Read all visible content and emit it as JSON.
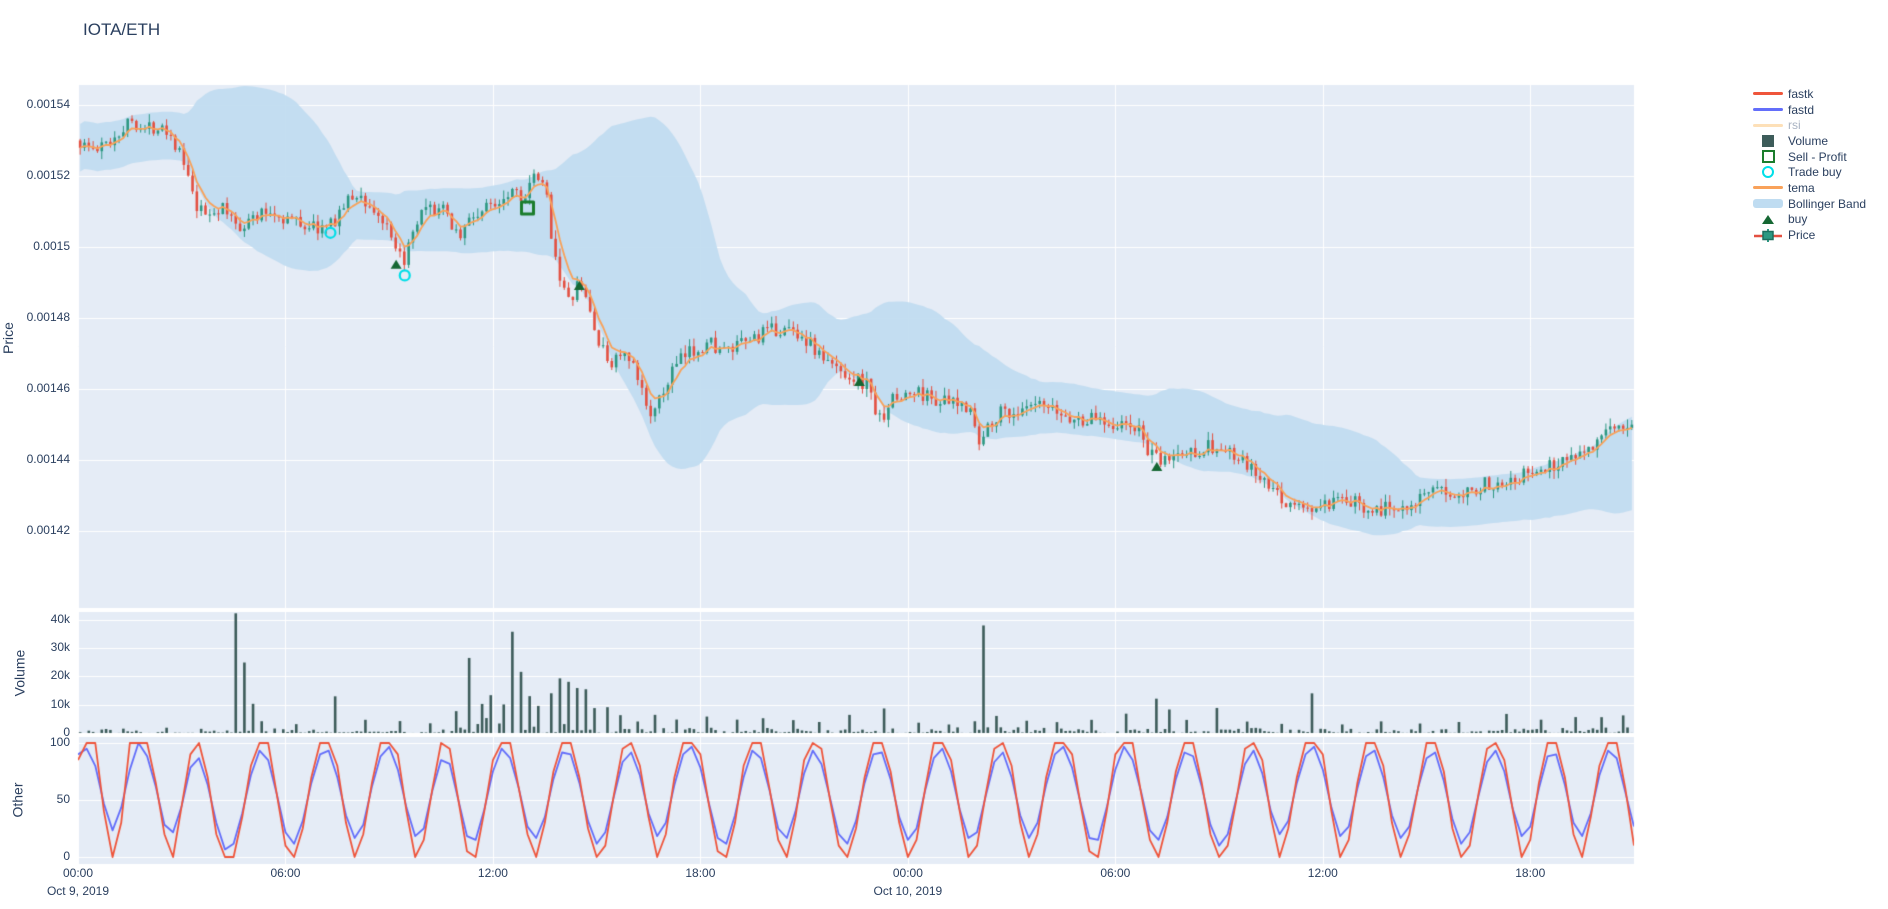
{
  "title": "IOTA/ETH",
  "colors": {
    "background": "#ffffff",
    "panel": "#e5ecf6",
    "grid": "#ffffff",
    "text": "#2a3f5f",
    "muted_text": "#a9b3c2",
    "candle_up": "#2d9882",
    "candle_down": "#e35041",
    "tema": "#f9a25a",
    "bollinger": "#bfdcf1",
    "volume": "#3d5c5a",
    "fastk": "#ef553b",
    "fastd": "#636efa",
    "rsi": "#fde0b8",
    "buy": "#156733",
    "sell_profit": "#1b7d2c",
    "trade_buy": "#00dfe8"
  },
  "axes": {
    "price": {
      "title": "Price",
      "tick_labels": [
        "0.00154",
        "0.00152",
        "0.0015",
        "0.00148",
        "0.00146",
        "0.00144",
        "0.00142"
      ],
      "tick_values": [
        0.00154,
        0.00152,
        0.0015,
        0.00148,
        0.00146,
        0.00144,
        0.00142
      ],
      "range": [
        0.0013983,
        0.0015456
      ]
    },
    "volume": {
      "title": "Volume",
      "tick_labels": [
        "40k",
        "30k",
        "20k",
        "10k",
        "0"
      ],
      "tick_values": [
        40,
        30,
        20,
        10,
        0
      ],
      "range": [
        0,
        42.8
      ]
    },
    "other": {
      "title": "Other",
      "tick_labels": [
        "100",
        "50",
        "0"
      ],
      "tick_values": [
        100,
        50,
        0
      ],
      "range": [
        -6,
        105
      ]
    },
    "x": {
      "tick_labels": [
        "00:00",
        "06:00",
        "12:00",
        "18:00",
        "00:00",
        "06:00",
        "12:00",
        "18:00"
      ],
      "tick_hours": [
        0,
        6,
        12,
        18,
        24,
        30,
        36,
        42
      ],
      "dates": [
        {
          "index": 0,
          "label": "Oct 9, 2019"
        },
        {
          "index": 4,
          "label": "Oct 10, 2019"
        }
      ],
      "range_hours": [
        0,
        45
      ]
    }
  },
  "legend": [
    {
      "name": "fastk",
      "label": "fastk",
      "swatch": "line",
      "color": "#ef553b",
      "muted": false
    },
    {
      "name": "fastd",
      "label": "fastd",
      "swatch": "line",
      "color": "#636efa",
      "muted": false
    },
    {
      "name": "rsi",
      "label": "rsi",
      "swatch": "line",
      "color": "#fde0b8",
      "muted": true
    },
    {
      "name": "volume",
      "label": "Volume",
      "swatch": "bar",
      "color": "#3d5c5a",
      "muted": false
    },
    {
      "name": "sell-profit",
      "label": "Sell - Profit",
      "swatch": "square-open",
      "color": "#1b7d2c",
      "muted": false
    },
    {
      "name": "trade-buy",
      "label": "Trade buy",
      "swatch": "circle-open",
      "color": "#00dfe8",
      "muted": false
    },
    {
      "name": "tema",
      "label": "tema",
      "swatch": "line",
      "color": "#f9a25a",
      "muted": false
    },
    {
      "name": "bollinger-band",
      "label": "Bollinger Band",
      "swatch": "band",
      "color": "#bfdcf1",
      "muted": false
    },
    {
      "name": "buy",
      "label": "buy",
      "swatch": "triangle",
      "color": "#156733",
      "muted": false
    },
    {
      "name": "price",
      "label": "Price",
      "swatch": "candle",
      "color": "#2d9882",
      "muted": false
    }
  ],
  "chart_data": {
    "type": "financial-multi-panel",
    "panels": [
      "price-candlestick+bollinger+tema+markers",
      "volume-bars",
      "oscillator-fastk-fastd"
    ],
    "x_unit": "hours since Oct 9 2019 00:00",
    "candle_interval_hours": 0.125,
    "price_path": [
      [
        0,
        0.00153
      ],
      [
        0.6,
        0.001527
      ],
      [
        1.0,
        0.00153
      ],
      [
        1.4,
        0.001534
      ],
      [
        1.65,
        0.001536
      ],
      [
        2.0,
        0.001533
      ],
      [
        2.5,
        0.001535
      ],
      [
        2.9,
        0.001529
      ],
      [
        3.2,
        0.001521
      ],
      [
        3.45,
        0.001511
      ],
      [
        3.7,
        0.001509
      ],
      [
        4.2,
        0.001511
      ],
      [
        4.7,
        0.001506
      ],
      [
        5.1,
        0.001508
      ],
      [
        5.6,
        0.00151
      ],
      [
        6.1,
        0.001508
      ],
      [
        6.7,
        0.001506
      ],
      [
        7.3,
        0.001505
      ],
      [
        7.7,
        0.001511
      ],
      [
        8.1,
        0.001515
      ],
      [
        8.45,
        0.001512
      ],
      [
        8.9,
        0.001507
      ],
      [
        9.25,
        0.001498
      ],
      [
        9.45,
        0.001496
      ],
      [
        9.7,
        0.001501
      ],
      [
        10.0,
        0.001509
      ],
      [
        10.5,
        0.001511
      ],
      [
        10.8,
        0.001508
      ],
      [
        11.1,
        0.001503
      ],
      [
        11.4,
        0.001508
      ],
      [
        11.9,
        0.001511
      ],
      [
        12.3,
        0.001514
      ],
      [
        12.65,
        0.001517
      ],
      [
        13.0,
        0.001514
      ],
      [
        13.3,
        0.00152
      ],
      [
        13.6,
        0.001515
      ],
      [
        13.8,
        0.001501
      ],
      [
        14.05,
        0.00149
      ],
      [
        14.25,
        0.001484
      ],
      [
        14.5,
        0.001489
      ],
      [
        14.75,
        0.001486
      ],
      [
        14.95,
        0.001479
      ],
      [
        15.15,
        0.001472
      ],
      [
        15.45,
        0.001467
      ],
      [
        15.75,
        0.00147
      ],
      [
        16.1,
        0.001466
      ],
      [
        16.5,
        0.001456
      ],
      [
        16.75,
        0.001453
      ],
      [
        16.95,
        0.001458
      ],
      [
        17.25,
        0.001465
      ],
      [
        17.6,
        0.001469
      ],
      [
        18.0,
        0.001472
      ],
      [
        18.4,
        0.001473
      ],
      [
        18.8,
        0.00147
      ],
      [
        19.2,
        0.001472
      ],
      [
        19.7,
        0.001475
      ],
      [
        20.4,
        0.001477
      ],
      [
        20.9,
        0.001476
      ],
      [
        21.3,
        0.001472
      ],
      [
        21.75,
        0.001467
      ],
      [
        22.2,
        0.001465
      ],
      [
        22.6,
        0.001463
      ],
      [
        23.0,
        0.00146
      ],
      [
        23.2,
        0.00145
      ],
      [
        23.5,
        0.001456
      ],
      [
        23.9,
        0.001458
      ],
      [
        24.4,
        0.001459
      ],
      [
        24.9,
        0.001457
      ],
      [
        25.5,
        0.001455
      ],
      [
        25.9,
        0.001456
      ],
      [
        26.1,
        0.001443
      ],
      [
        26.45,
        0.001451
      ],
      [
        26.8,
        0.001454
      ],
      [
        27.3,
        0.001453
      ],
      [
        27.8,
        0.001455
      ],
      [
        28.4,
        0.001453
      ],
      [
        29.0,
        0.001451
      ],
      [
        29.6,
        0.001452
      ],
      [
        30.1,
        0.00145
      ],
      [
        30.7,
        0.001449
      ],
      [
        31.1,
        0.001441
      ],
      [
        31.35,
        0.001439
      ],
      [
        31.7,
        0.001441
      ],
      [
        32.2,
        0.001442
      ],
      [
        32.7,
        0.001444
      ],
      [
        33.3,
        0.001442
      ],
      [
        33.9,
        0.001438
      ],
      [
        34.5,
        0.001432
      ],
      [
        35.0,
        0.001428
      ],
      [
        35.6,
        0.001426
      ],
      [
        36.2,
        0.001427
      ],
      [
        36.8,
        0.001428
      ],
      [
        37.4,
        0.001427
      ],
      [
        37.9,
        0.001426
      ],
      [
        38.5,
        0.001428
      ],
      [
        39.1,
        0.00143
      ],
      [
        39.7,
        0.001431
      ],
      [
        40.3,
        0.001432
      ],
      [
        40.8,
        0.001433
      ],
      [
        41.4,
        0.001435
      ],
      [
        42.0,
        0.001436
      ],
      [
        42.6,
        0.001438
      ],
      [
        43.2,
        0.001441
      ],
      [
        43.7,
        0.001444
      ],
      [
        44.2,
        0.001446
      ],
      [
        44.6,
        0.001449
      ],
      [
        45.0,
        0.001451
      ]
    ],
    "bollinger": {
      "window_hours": 5,
      "stdev_mult": 2.1
    },
    "tema": {
      "ema_alpha": 0.32
    },
    "volume_spikes_k": [
      [
        4.5,
        41
      ],
      [
        4.75,
        24
      ],
      [
        5.05,
        10
      ],
      [
        5.3,
        4
      ],
      [
        6.2,
        3
      ],
      [
        7.4,
        12
      ],
      [
        8.3,
        3.5
      ],
      [
        9.3,
        4
      ],
      [
        10.1,
        3
      ],
      [
        10.9,
        5
      ],
      [
        11.3,
        25
      ],
      [
        11.6,
        9
      ],
      [
        11.9,
        13
      ],
      [
        12.2,
        10
      ],
      [
        12.5,
        35
      ],
      [
        12.8,
        18
      ],
      [
        13.05,
        13
      ],
      [
        13.3,
        9
      ],
      [
        13.6,
        14
      ],
      [
        13.85,
        16
      ],
      [
        14.1,
        18
      ],
      [
        14.35,
        12
      ],
      [
        14.6,
        13
      ],
      [
        14.9,
        8
      ],
      [
        15.2,
        9
      ],
      [
        15.6,
        5
      ],
      [
        16.1,
        4
      ],
      [
        16.6,
        6
      ],
      [
        17.3,
        3.5
      ],
      [
        18.1,
        5
      ],
      [
        19.0,
        3
      ],
      [
        19.8,
        3.5
      ],
      [
        20.6,
        4
      ],
      [
        21.4,
        3
      ],
      [
        22.3,
        6
      ],
      [
        23.2,
        7
      ],
      [
        24.2,
        3
      ],
      [
        25.1,
        3
      ],
      [
        25.9,
        4
      ],
      [
        26.1,
        38
      ],
      [
        26.45,
        6
      ],
      [
        27.4,
        3
      ],
      [
        28.3,
        3.5
      ],
      [
        29.2,
        3
      ],
      [
        30.2,
        6
      ],
      [
        31.1,
        10
      ],
      [
        31.45,
        8
      ],
      [
        32.0,
        4
      ],
      [
        32.9,
        8
      ],
      [
        33.8,
        4
      ],
      [
        34.7,
        3
      ],
      [
        35.6,
        14
      ],
      [
        36.5,
        3
      ],
      [
        37.6,
        4
      ],
      [
        38.8,
        3
      ],
      [
        39.9,
        3
      ],
      [
        41.2,
        6
      ],
      [
        42.3,
        3.5
      ],
      [
        43.3,
        4
      ],
      [
        44.0,
        5
      ],
      [
        44.6,
        6
      ]
    ],
    "volume_activity": [
      [
        0,
        0.9
      ],
      [
        3,
        1.0
      ],
      [
        4.5,
        1.4
      ],
      [
        6,
        0.8
      ],
      [
        8,
        0.9
      ],
      [
        10,
        1.1
      ],
      [
        11,
        2.2
      ],
      [
        12,
        2.8
      ],
      [
        13,
        2.8
      ],
      [
        14,
        2.6
      ],
      [
        15,
        1.6
      ],
      [
        16,
        1.2
      ],
      [
        17,
        1.0
      ],
      [
        18,
        1.1
      ],
      [
        20,
        0.9
      ],
      [
        22,
        1.0
      ],
      [
        24,
        0.9
      ],
      [
        26,
        1.3
      ],
      [
        28,
        0.9
      ],
      [
        30,
        1.0
      ],
      [
        31,
        1.4
      ],
      [
        33,
        1.0
      ],
      [
        35,
        0.9
      ],
      [
        37,
        0.8
      ],
      [
        39,
        0.7
      ],
      [
        41,
        0.8
      ],
      [
        43,
        0.9
      ],
      [
        45,
        1.0
      ]
    ],
    "markers": {
      "buy": [
        [
          9.2,
          0.001495
        ],
        [
          14.5,
          0.001489
        ],
        [
          22.6,
          0.001462
        ],
        [
          31.2,
          0.001438
        ]
      ],
      "trade_buy": [
        [
          7.3,
          0.001504
        ],
        [
          9.45,
          0.001492
        ]
      ],
      "sell_profit": [
        [
          13.0,
          0.001511
        ]
      ]
    },
    "fastk_interval_hours": 0.25,
    "fastk": [
      85,
      100,
      100,
      40,
      0,
      30,
      100,
      100,
      100,
      65,
      20,
      0,
      45,
      90,
      100,
      70,
      20,
      0,
      0,
      35,
      80,
      100,
      100,
      55,
      10,
      0,
      25,
      70,
      100,
      100,
      80,
      30,
      0,
      20,
      65,
      100,
      100,
      90,
      40,
      0,
      15,
      60,
      100,
      95,
      50,
      5,
      0,
      40,
      85,
      100,
      100,
      60,
      20,
      0,
      30,
      75,
      100,
      100,
      70,
      25,
      0,
      10,
      55,
      95,
      100,
      80,
      35,
      0,
      20,
      70,
      100,
      100,
      90,
      45,
      5,
      0,
      30,
      80,
      100,
      100,
      60,
      15,
      0,
      35,
      85,
      100,
      95,
      50,
      10,
      0,
      25,
      70,
      100,
      100,
      75,
      30,
      0,
      15,
      60,
      100,
      100,
      85,
      40,
      0,
      10,
      55,
      95,
      100,
      80,
      30,
      0,
      20,
      70,
      100,
      100,
      90,
      45,
      5,
      0,
      40,
      90,
      100,
      100,
      55,
      15,
      0,
      30,
      75,
      100,
      100,
      65,
      20,
      0,
      10,
      50,
      95,
      100,
      85,
      35,
      0,
      25,
      70,
      100,
      100,
      90,
      40,
      0,
      15,
      65,
      100,
      100,
      80,
      30,
      0,
      20,
      60,
      100,
      100,
      75,
      25,
      0,
      10,
      55,
      95,
      100,
      85,
      40,
      0,
      15,
      65,
      100,
      100,
      70,
      20,
      0,
      35,
      80,
      100,
      100,
      60,
      10
    ],
    "fastd_derivation": "3-point moving average of fastk",
    "rsi_visible": false
  }
}
